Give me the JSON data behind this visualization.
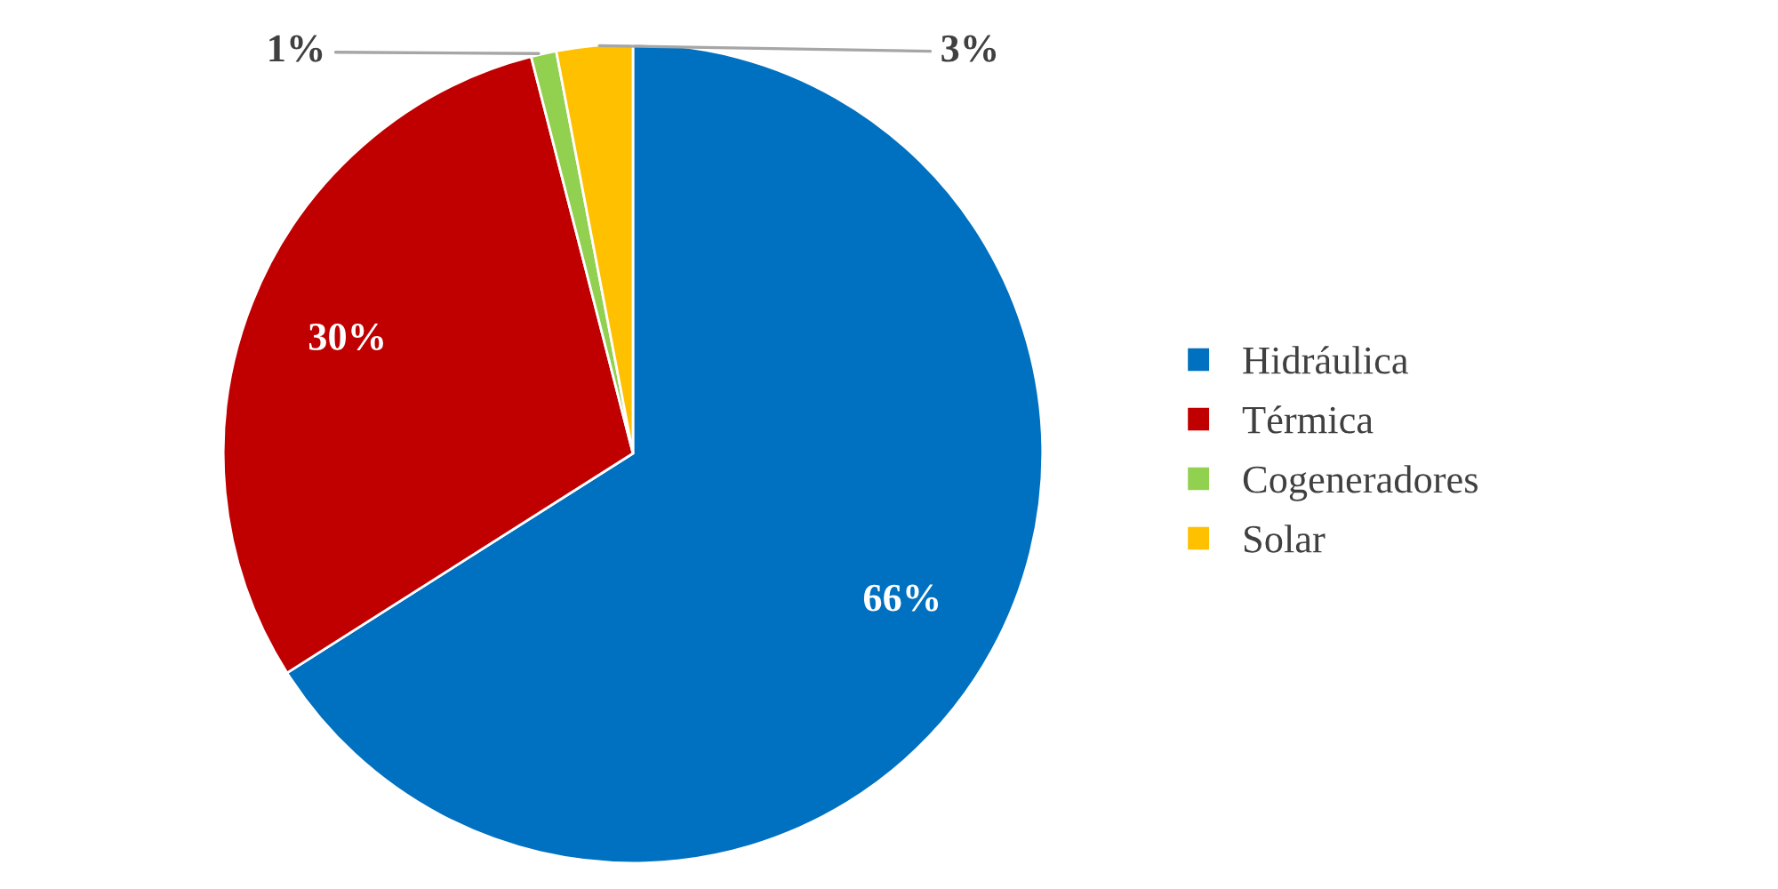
{
  "chart_data": {
    "type": "pie",
    "categories": [
      "Hidráulica",
      "Térmica",
      "Cogeneradores",
      "Solar"
    ],
    "values": [
      66,
      30,
      1,
      3
    ],
    "colors": [
      "#0070c0",
      "#c00000",
      "#92d050",
      "#ffc000"
    ],
    "value_labels": [
      "66%",
      "30%",
      "1%",
      "3%"
    ],
    "legend": "right"
  }
}
